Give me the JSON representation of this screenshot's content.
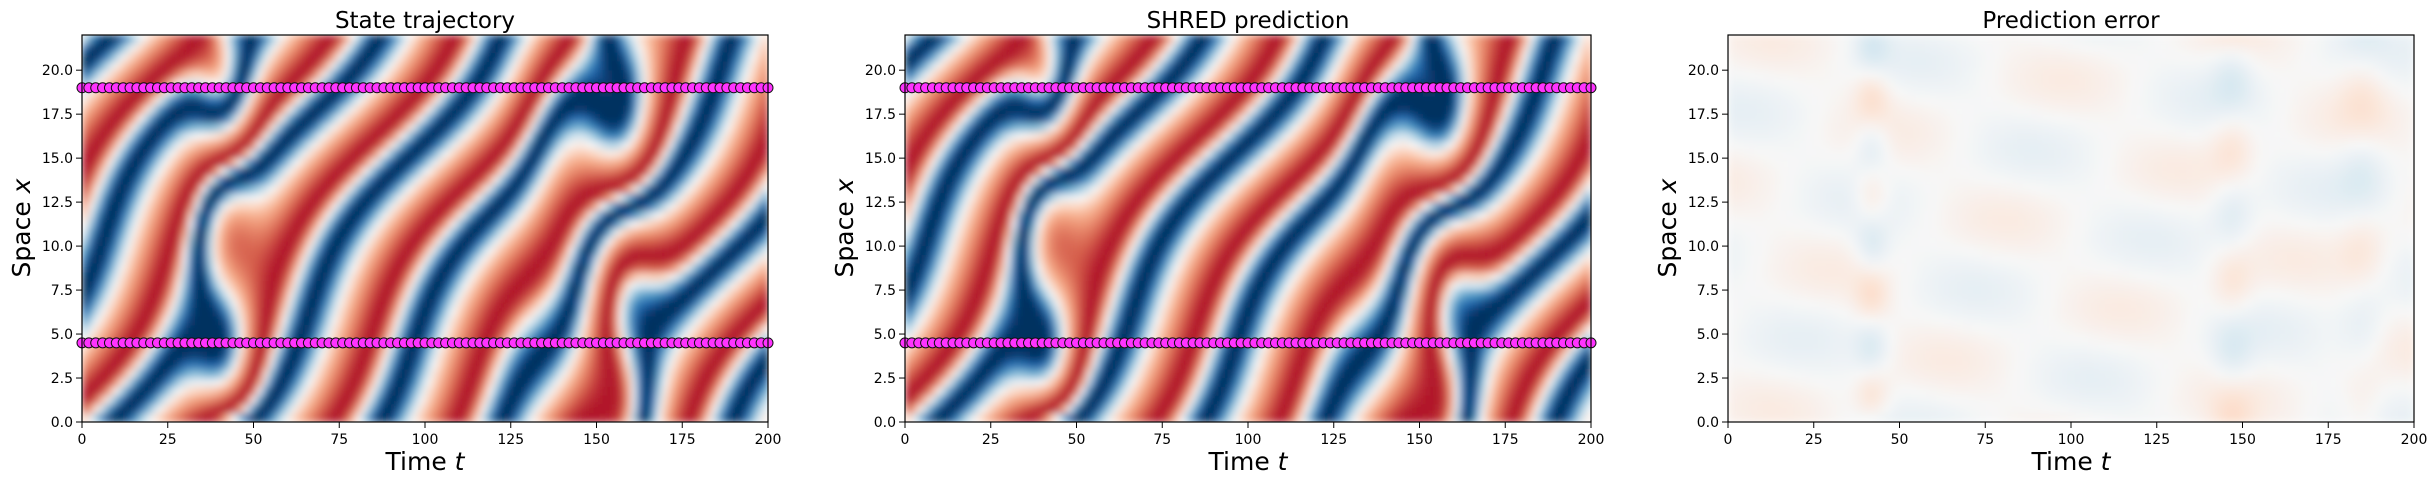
{
  "colors": {
    "sensor": "#ff33ff",
    "sensor_edge": "#111111",
    "colormap": "RdBu_r"
  },
  "chart_data": [
    {
      "type": "heatmap",
      "title": "State trajectory",
      "xlabel": "Time ",
      "xvar": "t",
      "ylabel": "Space ",
      "yvar": "x",
      "xlim": [
        0,
        200
      ],
      "ylim": [
        0,
        22
      ],
      "xticks": [
        "0",
        "25",
        "50",
        "75",
        "100",
        "125",
        "150",
        "175",
        "200"
      ],
      "yticks": [
        "0.0",
        "2.5",
        "5.0",
        "7.5",
        "10.0",
        "12.5",
        "15.0",
        "17.5",
        "20.0"
      ],
      "sensor_rows": [
        4.5,
        19.0
      ],
      "field": "kuramoto-sivashinsky"
    },
    {
      "type": "heatmap",
      "title": "SHRED prediction",
      "xlabel": "Time ",
      "xvar": "t",
      "ylabel": "Space ",
      "yvar": "x",
      "xlim": [
        0,
        200
      ],
      "ylim": [
        0,
        22
      ],
      "xticks": [
        "0",
        "25",
        "50",
        "75",
        "100",
        "125",
        "150",
        "175",
        "200"
      ],
      "yticks": [
        "0.0",
        "2.5",
        "5.0",
        "7.5",
        "10.0",
        "12.5",
        "15.0",
        "17.5",
        "20.0"
      ],
      "sensor_rows": [
        4.5,
        19.0
      ],
      "field": "kuramoto-sivashinsky"
    },
    {
      "type": "heatmap",
      "title": "Prediction error",
      "xlabel": "Time ",
      "xvar": "t",
      "ylabel": "Space ",
      "yvar": "x",
      "xlim": [
        0,
        200
      ],
      "ylim": [
        0,
        22
      ],
      "xticks": [
        "0",
        "25",
        "50",
        "75",
        "100",
        "125",
        "150",
        "175",
        "200"
      ],
      "yticks": [
        "0.0",
        "2.5",
        "5.0",
        "7.5",
        "10.0",
        "12.5",
        "15.0",
        "17.5",
        "20.0"
      ],
      "sensor_rows": [],
      "field": "error"
    }
  ]
}
